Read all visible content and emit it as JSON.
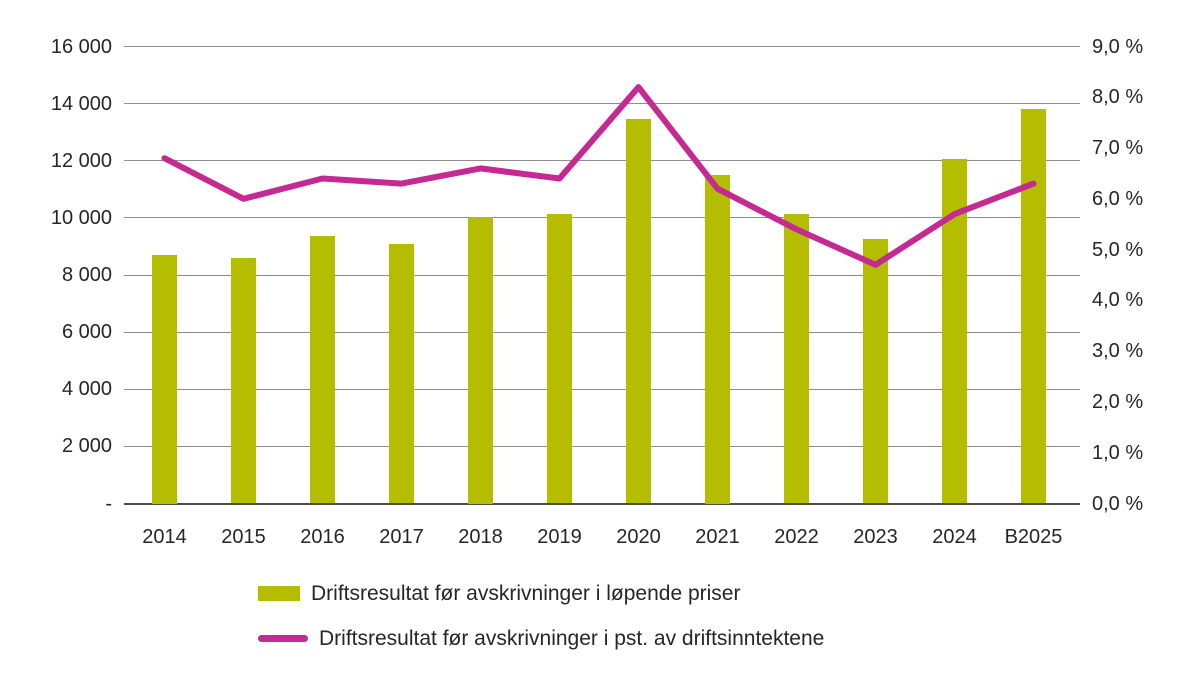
{
  "chart_data": {
    "type": "bar",
    "subtype": "combo-bar-line-dual-axis",
    "categories": [
      "2014",
      "2015",
      "2016",
      "2017",
      "2018",
      "2019",
      "2020",
      "2021",
      "2022",
      "2023",
      "2024",
      "B2025"
    ],
    "series": [
      {
        "name": "Driftsresultat før avskrivninger i løpende priser",
        "type": "bar",
        "axis": "left",
        "color": "#b5bd00",
        "values": [
          8700,
          8600,
          9350,
          9100,
          10030,
          10150,
          13450,
          11500,
          10150,
          9250,
          12050,
          13800
        ]
      },
      {
        "name": "Driftsresultat før avskrivninger i pst. av driftsinntektene",
        "type": "line",
        "axis": "right",
        "color": "#c42a92",
        "values": [
          6.8,
          6.0,
          6.4,
          6.3,
          6.6,
          6.4,
          8.2,
          6.2,
          5.4,
          4.7,
          5.7,
          6.3
        ]
      }
    ],
    "left_axis": {
      "min": 0,
      "max": 16000,
      "step": 2000,
      "tick_labels": [
        "-",
        "2 000",
        "4 000",
        "6 000",
        "8 000",
        "10 000",
        "12 000",
        "14 000",
        "16 000"
      ]
    },
    "right_axis": {
      "min": 0,
      "max": 9,
      "step": 1,
      "tick_labels": [
        "0,0 %",
        "1,0 %",
        "2,0 %",
        "3,0 %",
        "4,0 %",
        "5,0 %",
        "6,0 %",
        "7,0 %",
        "8,0 %",
        "9,0 %"
      ]
    },
    "title": "",
    "xlabel": "",
    "ylabel": "",
    "grid": true,
    "legend_position": "bottom-left",
    "colors": {
      "bar": "#b5bd00",
      "line": "#c42a92",
      "gridline": "#8e8e8e",
      "zero_axis_line": "#4d4d4d",
      "text": "#262626",
      "background": "#ffffff"
    }
  }
}
